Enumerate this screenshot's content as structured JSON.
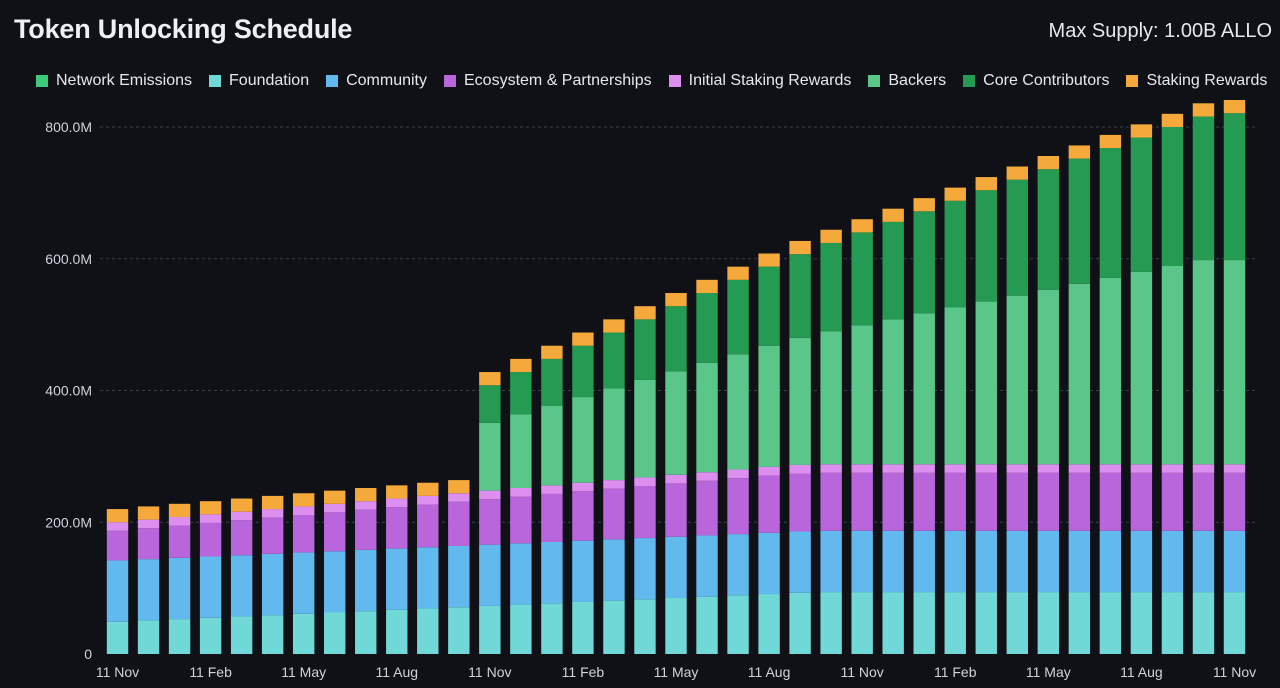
{
  "header": {
    "title": "Token Unlocking Schedule",
    "max_supply": "Max Supply: 1.00B ALLO"
  },
  "chart_data": {
    "type": "bar",
    "stacked": true,
    "title": "Token Unlocking Schedule",
    "xlabel": "",
    "ylabel": "",
    "ylim": [
      0,
      800
    ],
    "y_unit": "M",
    "y_ticks": [
      {
        "value": 0,
        "label": "0"
      },
      {
        "value": 200,
        "label": "200.0M"
      },
      {
        "value": 400,
        "label": "400.0M"
      },
      {
        "value": 600,
        "label": "600.0M"
      },
      {
        "value": 800,
        "label": "800.0M"
      }
    ],
    "x_ticks": [
      {
        "index": 0,
        "label": "11 Nov"
      },
      {
        "index": 3,
        "label": "11 Feb"
      },
      {
        "index": 6,
        "label": "11 May"
      },
      {
        "index": 9,
        "label": "11 Aug"
      },
      {
        "index": 12,
        "label": "11 Nov"
      },
      {
        "index": 15,
        "label": "11 Feb"
      },
      {
        "index": 18,
        "label": "11 May"
      },
      {
        "index": 21,
        "label": "11 Aug"
      },
      {
        "index": 24,
        "label": "11 Nov"
      },
      {
        "index": 27,
        "label": "11 Feb"
      },
      {
        "index": 30,
        "label": "11 May"
      },
      {
        "index": 33,
        "label": "11 Aug"
      },
      {
        "index": 36,
        "label": "11 Nov"
      }
    ],
    "grid": true,
    "legend_position": "top",
    "series": [
      {
        "name": "Network Emissions",
        "color": "#3ec97a",
        "values": [
          0,
          0,
          0,
          0,
          0,
          0,
          0,
          0,
          0,
          0,
          0,
          0,
          0,
          0,
          0,
          0,
          0,
          0,
          0,
          0,
          0,
          0,
          0,
          0,
          0,
          0,
          0,
          0,
          0,
          0,
          0,
          0,
          0,
          0,
          0,
          0,
          0
        ]
      },
      {
        "name": "Foundation",
        "color": "#70d8d6",
        "values": [
          49,
          51,
          53,
          55,
          57,
          59,
          61,
          63,
          65,
          67,
          69,
          71,
          73,
          75,
          77,
          79,
          81,
          83,
          85,
          87,
          89,
          91,
          93,
          94,
          94,
          94,
          94,
          94,
          94,
          94,
          94,
          94,
          94,
          94,
          94,
          94,
          94
        ]
      },
      {
        "name": "Community",
        "color": "#62b9ee",
        "values": [
          93,
          93,
          93,
          93,
          93,
          93,
          93,
          93,
          93,
          93,
          93,
          93,
          93,
          93,
          93,
          93,
          93,
          93,
          93,
          93,
          93,
          93,
          93,
          93,
          93,
          93,
          93,
          93,
          93,
          93,
          93,
          93,
          93,
          93,
          93,
          93,
          93
        ]
      },
      {
        "name": "Ecosystem & Partnerships",
        "color": "#b966dd",
        "values": [
          45,
          47,
          49,
          51,
          53,
          55,
          57,
          59,
          61,
          63,
          65,
          67,
          69,
          71,
          73,
          75,
          77,
          79,
          81,
          83,
          85,
          87,
          88,
          88,
          88,
          88,
          88,
          88,
          88,
          88,
          88,
          88,
          88,
          88,
          88,
          88,
          88
        ]
      },
      {
        "name": "Initial Staking Rewards",
        "color": "#dd8ff0",
        "values": [
          13,
          13,
          13,
          13,
          13,
          13,
          13,
          13,
          13,
          13,
          13,
          13,
          13,
          13,
          13,
          13,
          13,
          13,
          13,
          13,
          13,
          13,
          13,
          13,
          13,
          13,
          13,
          13,
          13,
          13,
          13,
          13,
          13,
          13,
          13,
          13,
          13
        ]
      },
      {
        "name": "Backers",
        "color": "#5bc68a",
        "values": [
          0,
          0,
          0,
          0,
          0,
          0,
          0,
          0,
          0,
          0,
          0,
          0,
          103,
          112,
          121,
          130,
          139,
          148,
          157,
          166,
          175,
          184,
          193,
          202,
          211,
          220,
          229,
          238,
          247,
          256,
          265,
          274,
          283,
          292,
          301,
          310,
          310
        ]
      },
      {
        "name": "Core Contributors",
        "color": "#259a52",
        "values": [
          0,
          0,
          0,
          0,
          0,
          0,
          0,
          0,
          0,
          0,
          0,
          0,
          57,
          64,
          71,
          78,
          85,
          92,
          99,
          106,
          113,
          120,
          127,
          134,
          141,
          148,
          155,
          162,
          169,
          176,
          183,
          190,
          197,
          204,
          211,
          218,
          223
        ]
      },
      {
        "name": "Staking Rewards",
        "color": "#f5a93a",
        "values": [
          20,
          20,
          20,
          20,
          20,
          20,
          20,
          20,
          20,
          20,
          20,
          20,
          20,
          20,
          20,
          20,
          20,
          20,
          20,
          20,
          20,
          20,
          20,
          20,
          20,
          20,
          20,
          20,
          20,
          20,
          20,
          20,
          20,
          20,
          20,
          20,
          20
        ]
      }
    ]
  }
}
